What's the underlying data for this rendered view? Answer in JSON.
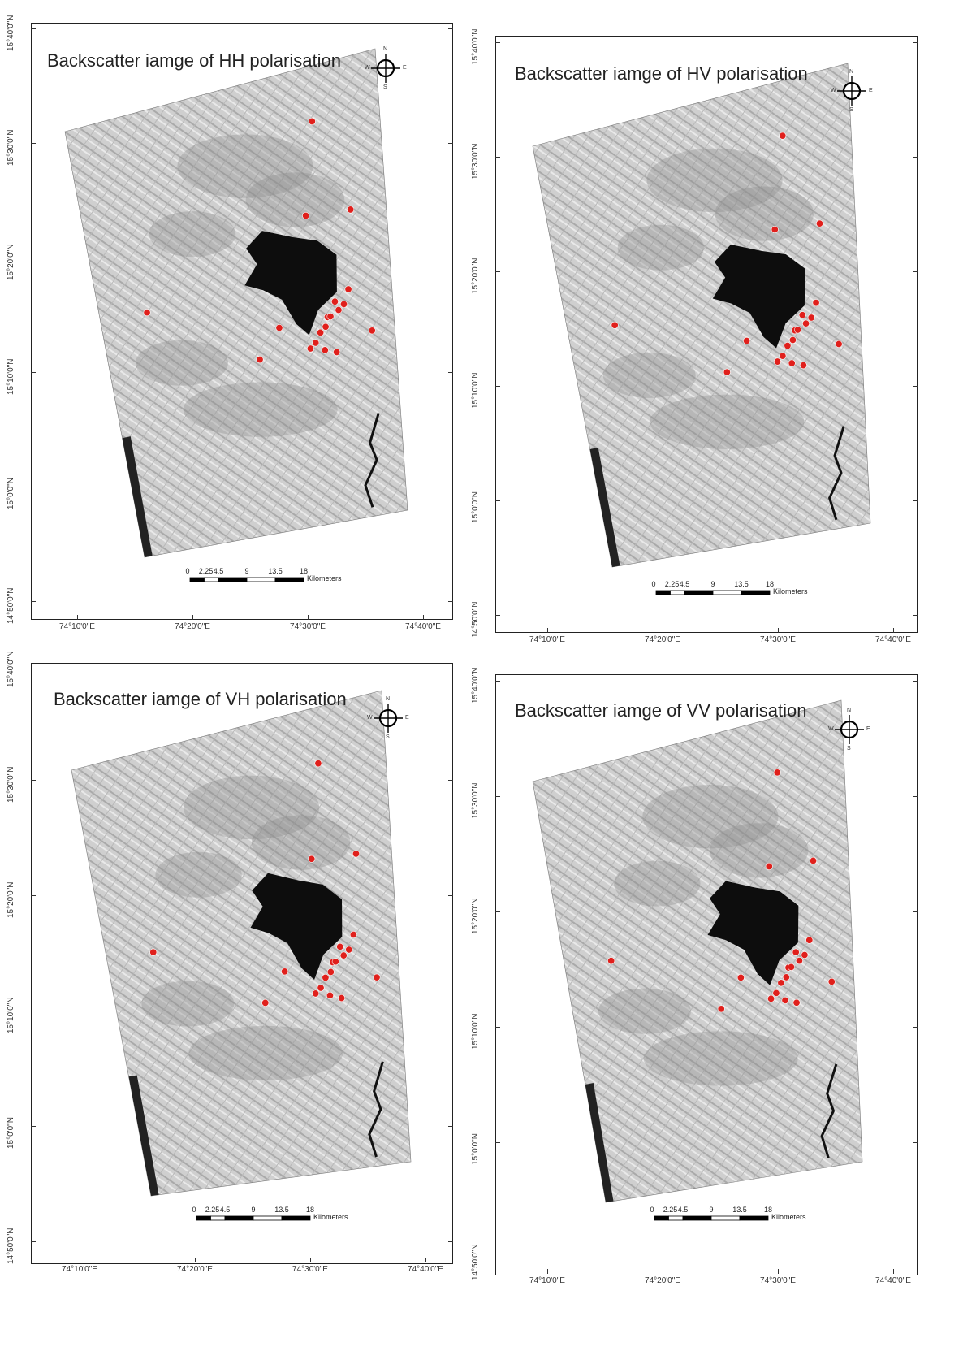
{
  "panels": [
    {
      "id": "hh",
      "title": "Backscatter iamge of HH polarisation"
    },
    {
      "id": "hv",
      "title": "Backscatter iamge of HV polarisation"
    },
    {
      "id": "vh",
      "title": "Backscatter iamge of VH polarisation"
    },
    {
      "id": "vv",
      "title": "Backscatter iamge of VV polarisation"
    }
  ],
  "x_ticks": [
    "74°10'0\"E",
    "74°20'0\"E",
    "74°30'0\"E",
    "74°40'0\"E"
  ],
  "y_ticks": [
    "15°40'0\"N",
    "15°30'0\"N",
    "15°20'0\"N",
    "15°10'0\"N",
    "15°0'0\"N",
    "14°50'0\"N"
  ],
  "compass": {
    "n": "N",
    "s": "S",
    "e": "E",
    "w": "W"
  },
  "scalebar": {
    "labels": [
      "0",
      "2.25",
      "4.5",
      "9",
      "13.5",
      "18"
    ],
    "unit": "Kilometers"
  },
  "colors": {
    "points": "#e0201c",
    "water": "#0d0d0d",
    "land_light": "#cfcfcf",
    "land_dark": "#8a8a8a"
  }
}
